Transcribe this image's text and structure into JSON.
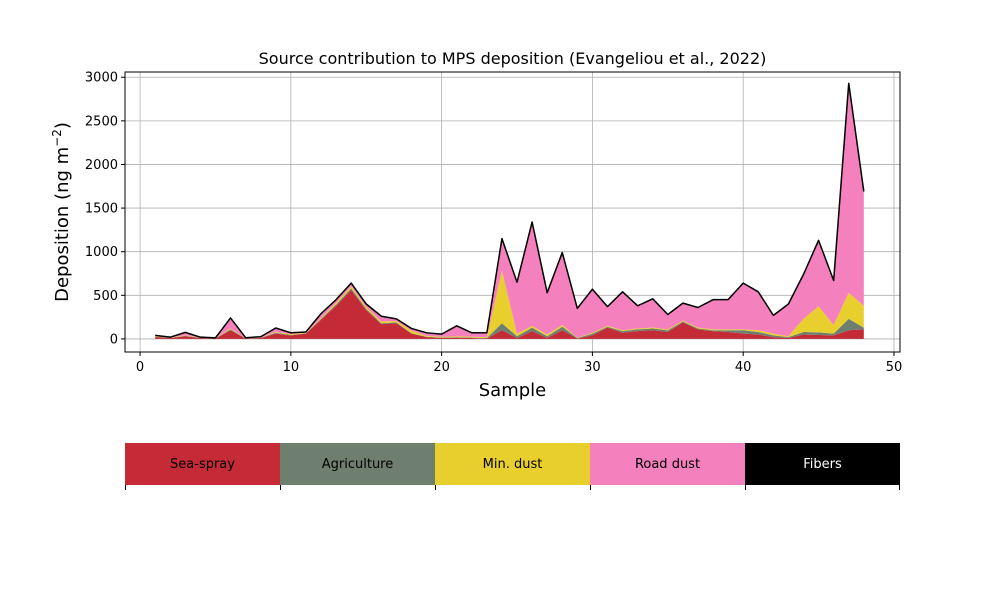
{
  "chart_data": {
    "type": "area",
    "stacked": true,
    "title": "Source contribution to MPS deposition (Evangeliou et al., 2022)",
    "xlabel": "Sample",
    "ylabel": "Deposition (ng m",
    "ylabel_sup": "−2",
    "ylabel_close": ")",
    "xlim": [
      -1,
      50.4
    ],
    "ylim": [
      -150,
      3060
    ],
    "xticks": [
      0,
      10,
      20,
      30,
      40,
      50
    ],
    "yticks": [
      0,
      500,
      1000,
      1500,
      2000,
      2500,
      3000
    ],
    "grid": true,
    "x": [
      1,
      2,
      3,
      4,
      5,
      6,
      7,
      8,
      9,
      10,
      11,
      12,
      13,
      14,
      15,
      16,
      17,
      18,
      19,
      20,
      21,
      22,
      23,
      24,
      25,
      26,
      27,
      28,
      29,
      30,
      31,
      32,
      33,
      34,
      35,
      36,
      37,
      38,
      39,
      40,
      41,
      42,
      43,
      44,
      45,
      46,
      47,
      48
    ],
    "series": [
      {
        "name": "Sea-spray",
        "color": "#c52a37",
        "values": [
          20,
          10,
          30,
          10,
          5,
          100,
          5,
          10,
          60,
          40,
          60,
          220,
          380,
          560,
          330,
          170,
          180,
          60,
          20,
          10,
          15,
          10,
          5,
          100,
          10,
          90,
          10,
          100,
          5,
          40,
          130,
          70,
          90,
          100,
          80,
          190,
          110,
          90,
          80,
          60,
          50,
          20,
          10,
          50,
          45,
          40,
          100,
          110
        ]
      },
      {
        "name": "Agriculture",
        "color": "#6e7f70",
        "values": [
          5,
          3,
          5,
          3,
          2,
          10,
          2,
          3,
          10,
          5,
          5,
          10,
          15,
          20,
          15,
          10,
          10,
          5,
          5,
          5,
          5,
          5,
          5,
          80,
          20,
          40,
          20,
          40,
          5,
          20,
          10,
          20,
          20,
          20,
          20,
          10,
          10,
          10,
          20,
          40,
          30,
          20,
          10,
          30,
          30,
          20,
          130,
          20
        ]
      },
      {
        "name": "Min. dust",
        "color": "#e8cf2e",
        "values": [
          5,
          3,
          5,
          3,
          2,
          10,
          2,
          3,
          10,
          10,
          5,
          10,
          20,
          20,
          20,
          20,
          15,
          30,
          10,
          10,
          10,
          10,
          10,
          600,
          30,
          20,
          20,
          20,
          5,
          10,
          10,
          10,
          10,
          10,
          10,
          10,
          10,
          10,
          10,
          10,
          20,
          20,
          10,
          150,
          300,
          100,
          300,
          250
        ]
      },
      {
        "name": "Road dust",
        "color": "#f481bd",
        "values": [
          10,
          4,
          35,
          4,
          3,
          120,
          5,
          9,
          45,
          15,
          10,
          50,
          35,
          40,
          35,
          60,
          25,
          25,
          35,
          30,
          120,
          45,
          50,
          370,
          590,
          1190,
          480,
          830,
          335,
          500,
          220,
          440,
          260,
          330,
          170,
          200,
          230,
          340,
          340,
          530,
          440,
          210,
          370,
          510,
          755,
          510,
          2400,
          1310
        ]
      },
      {
        "name": "Fibers",
        "color": "#000000",
        "values": [
          0,
          0,
          0,
          0,
          0,
          0,
          0,
          0,
          0,
          0,
          0,
          0,
          0,
          0,
          0,
          0,
          0,
          0,
          0,
          0,
          0,
          0,
          0,
          0,
          0,
          0,
          0,
          0,
          0,
          0,
          0,
          0,
          0,
          0,
          0,
          0,
          0,
          0,
          0,
          0,
          0,
          0,
          0,
          0,
          0,
          0,
          0,
          0
        ]
      }
    ],
    "legend": {
      "placement": "below",
      "style": "colorbar"
    }
  }
}
